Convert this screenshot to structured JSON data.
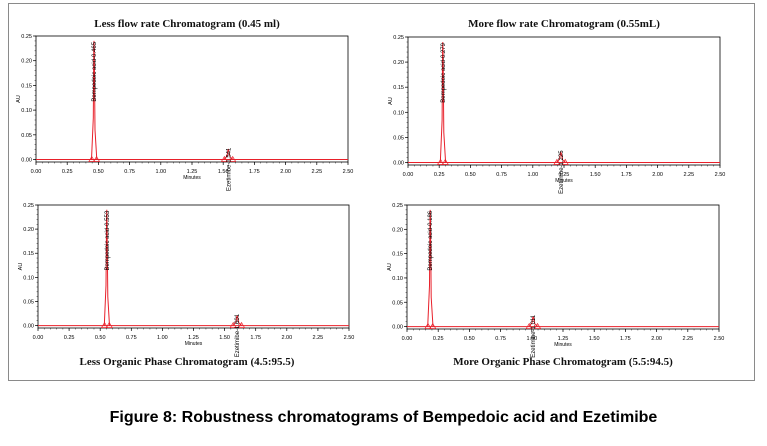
{
  "figure_caption": "Figure 8: Robustness chromatograms of Bempedoic acid and Ezetimibe",
  "colors": {
    "trace": "#e8202a",
    "axis": "#000000",
    "frame": "#8a8a8a"
  },
  "chart_data": [
    {
      "type": "line",
      "title": "Less flow rate Chromatogram (0.45 ml)",
      "xlabel": "Minutes",
      "ylabel": "AU",
      "xlim": [
        0,
        2.5
      ],
      "ylim": [
        -0.005,
        0.25
      ],
      "xticks": [
        "0.00",
        "0.25",
        "0.50",
        "0.75",
        "1.00",
        "1.25",
        "1.50",
        "1.75",
        "2.00",
        "2.25",
        "2.50"
      ],
      "yticks": [
        "0.00",
        "0.05",
        "0.10",
        "0.15",
        "0.20",
        "0.25"
      ],
      "peaks": [
        {
          "label": "Bempedoic acid-0.465",
          "rt": 0.465,
          "height": 0.24,
          "width": 0.02
        },
        {
          "label": "Ezetimibe-1.541",
          "rt": 1.541,
          "height": 0.02,
          "width": 0.035
        }
      ]
    },
    {
      "type": "line",
      "title": "More flow rate Chromatogram (0.55mL)",
      "xlabel": "Minutes",
      "ylabel": "AU",
      "xlim": [
        0,
        2.5
      ],
      "ylim": [
        -0.005,
        0.25
      ],
      "xticks": [
        "0.00",
        "0.25",
        "0.50",
        "0.75",
        "1.00",
        "1.25",
        "1.50",
        "1.75",
        "2.00",
        "2.25",
        "2.50"
      ],
      "yticks": [
        "0.00",
        "0.05",
        "0.10",
        "0.15",
        "0.20",
        "0.25"
      ],
      "peaks": [
        {
          "label": "Bempedoic acid-0.279",
          "rt": 0.279,
          "height": 0.24,
          "width": 0.02
        },
        {
          "label": "Ezetimibe-1.225",
          "rt": 1.225,
          "height": 0.02,
          "width": 0.035
        }
      ]
    },
    {
      "type": "line",
      "title": "Less Organic Phase Chromatogram (4.5:95.5)",
      "xlabel": "Minutes",
      "ylabel": "AU",
      "xlim": [
        0,
        2.5
      ],
      "ylim": [
        -0.005,
        0.25
      ],
      "xticks": [
        "0.00",
        "0.25",
        "0.50",
        "0.75",
        "1.00",
        "1.25",
        "1.50",
        "1.75",
        "2.00",
        "2.25",
        "2.50"
      ],
      "yticks": [
        "0.00",
        "0.05",
        "0.10",
        "0.15",
        "0.20",
        "0.25"
      ],
      "peaks": [
        {
          "label": "Bempedoic acid-0.553",
          "rt": 0.553,
          "height": 0.24,
          "width": 0.02
        },
        {
          "label": "Ezetimibe-1.601",
          "rt": 1.601,
          "height": 0.02,
          "width": 0.035
        }
      ]
    },
    {
      "type": "line",
      "title": "More Organic Phase Chromatogram (5.5:94.5)",
      "xlabel": "Minutes",
      "ylabel": "AU",
      "xlim": [
        0,
        2.5
      ],
      "ylim": [
        -0.005,
        0.25
      ],
      "xticks": [
        "0.00",
        "0.25",
        "0.50",
        "0.75",
        "1.00",
        "1.25",
        "1.50",
        "1.75",
        "2.00",
        "2.25",
        "2.50"
      ],
      "yticks": [
        "0.00",
        "0.05",
        "0.10",
        "0.15",
        "0.20",
        "0.25"
      ],
      "peaks": [
        {
          "label": "Bempedoic acid-0.186",
          "rt": 0.186,
          "height": 0.24,
          "width": 0.02
        },
        {
          "label": "Ezetimibe-1.011",
          "rt": 1.011,
          "height": 0.02,
          "width": 0.035
        }
      ]
    }
  ]
}
